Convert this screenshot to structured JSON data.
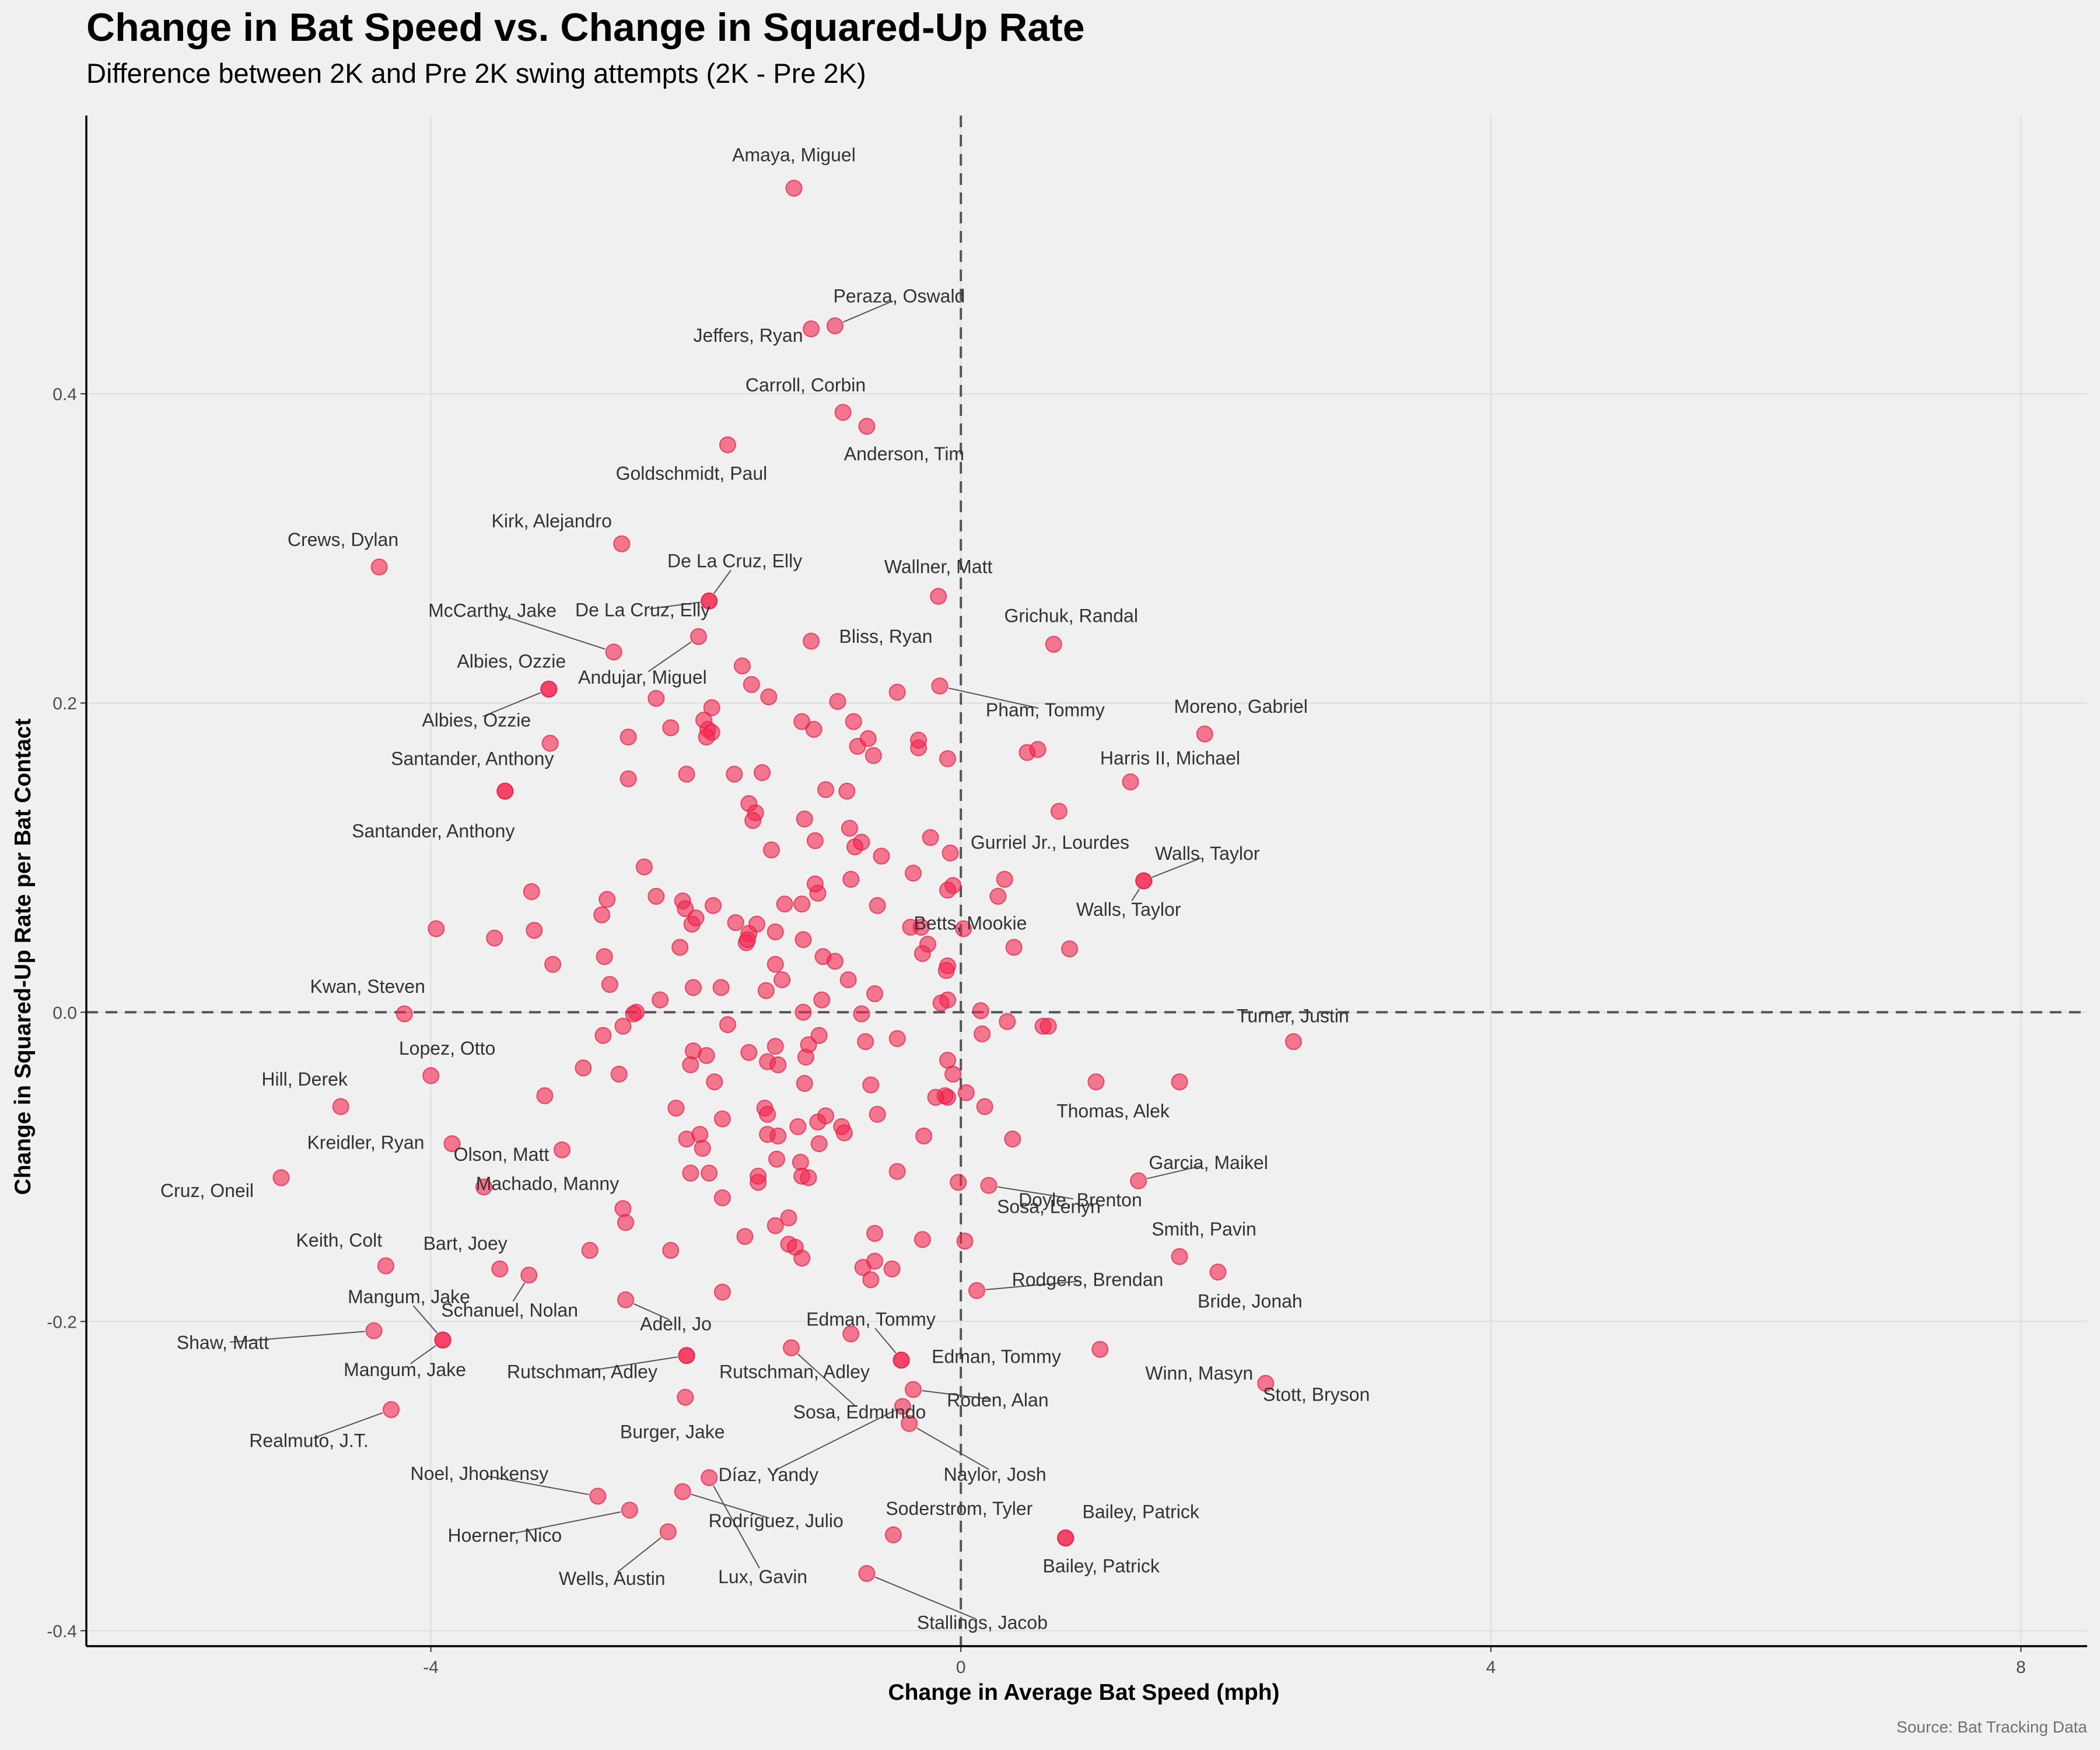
{
  "title": "Change in Bat Speed vs. Change in Squared-Up Rate",
  "subtitle": "Difference between 2K and Pre 2K swing attempts (2K - Pre 2K)",
  "caption": "Source: Bat Tracking Data",
  "colors": {
    "point": "#f5254f",
    "background": "#f0f0f0"
  },
  "chart_data": {
    "type": "scatter",
    "xlabel": "Change in Average Bat Speed (mph)",
    "ylabel": "Change in Squared-Up Rate per Bat Contact",
    "xlim": [
      -6.6,
      8.5
    ],
    "ylim": [
      -0.41,
      0.58
    ],
    "xticks": [
      -4,
      0,
      4,
      8
    ],
    "yticks": [
      -0.4,
      -0.2,
      0.0,
      0.2,
      0.4
    ],
    "xtick_labels": [
      "-4",
      "0",
      "4",
      "8"
    ],
    "ytick_labels": [
      "-0.4",
      "-0.2",
      "0.0",
      "0.2",
      "0.4"
    ],
    "reference_lines": {
      "x": 0,
      "y": 0
    },
    "grid": true,
    "labeled_points": [
      {
        "label": "Amaya, Miguel",
        "x": -1.26,
        "y": 0.533
      },
      {
        "label": "Peraza, Oswald",
        "x": -0.95,
        "y": 0.444
      },
      {
        "label": "Jeffers, Ryan",
        "x": -1.13,
        "y": 0.442
      },
      {
        "label": "Carroll, Corbin",
        "x": -0.89,
        "y": 0.388
      },
      {
        "label": "Anderson, Tim",
        "x": -0.71,
        "y": 0.379
      },
      {
        "label": "Goldschmidt, Paul",
        "x": -1.76,
        "y": 0.367
      },
      {
        "label": "Kirk, Alejandro",
        "x": -2.56,
        "y": 0.303
      },
      {
        "label": "Crews, Dylan",
        "x": -4.39,
        "y": 0.288
      },
      {
        "label": "Wallner, Matt",
        "x": -0.17,
        "y": 0.269
      },
      {
        "label": "De La Cruz, Elly",
        "x": -1.9,
        "y": 0.266
      },
      {
        "label": "De La Cruz, Elly",
        "x": -1.9,
        "y": 0.266
      },
      {
        "label": "McCarthy, Jake",
        "x": -2.62,
        "y": 0.233
      },
      {
        "label": "Andujar, Miguel",
        "x": -1.98,
        "y": 0.243
      },
      {
        "label": "Bliss, Ryan",
        "x": -1.13,
        "y": 0.24
      },
      {
        "label": "Grichuk, Randal",
        "x": 0.7,
        "y": 0.238
      },
      {
        "label": "Albies, Ozzie",
        "x": -3.11,
        "y": 0.209
      },
      {
        "label": "Albies, Ozzie",
        "x": -3.11,
        "y": 0.209
      },
      {
        "label": "Pham, Tommy",
        "x": -0.16,
        "y": 0.211
      },
      {
        "label": "Moreno, Gabriel",
        "x": 1.84,
        "y": 0.18
      },
      {
        "label": "Harris II, Michael",
        "x": 1.28,
        "y": 0.149
      },
      {
        "label": "Santander, Anthony",
        "x": -3.44,
        "y": 0.143
      },
      {
        "label": "Santander, Anthony",
        "x": -3.44,
        "y": 0.143
      },
      {
        "label": "Gurriel Jr., Lourdes",
        "x": -0.23,
        "y": 0.113
      },
      {
        "label": "Walls, Taylor",
        "x": 1.38,
        "y": 0.085
      },
      {
        "label": "Walls, Taylor",
        "x": 1.38,
        "y": 0.085
      },
      {
        "label": "Betts, Mookie",
        "x": 0.82,
        "y": 0.041
      },
      {
        "label": "Kwan, Steven",
        "x": -4.2,
        "y": -0.001
      },
      {
        "label": "Turner, Justin",
        "x": 2.51,
        "y": -0.019
      },
      {
        "label": "Lopez, Otto",
        "x": -4.0,
        "y": -0.041
      },
      {
        "label": "Hill, Derek",
        "x": -4.68,
        "y": -0.061
      },
      {
        "label": "Thomas, Alek",
        "x": 1.65,
        "y": -0.045
      },
      {
        "label": "Olson, Matt",
        "x": -3.01,
        "y": -0.089
      },
      {
        "label": "Kreidler, Ryan",
        "x": -3.84,
        "y": -0.085
      },
      {
        "label": "Machado, Manny",
        "x": -3.6,
        "y": -0.113
      },
      {
        "label": "Garcia, Maikel",
        "x": 1.34,
        "y": -0.109
      },
      {
        "label": "Cruz, Oneil",
        "x": -5.13,
        "y": -0.107
      },
      {
        "label": "Doyle, Brenton",
        "x": 0.21,
        "y": -0.112
      },
      {
        "label": "Smith, Pavin",
        "x": 1.65,
        "y": -0.158
      },
      {
        "label": "Sosa, Lenyn",
        "x": 0.03,
        "y": -0.148
      },
      {
        "label": "Keith, Colt",
        "x": -4.34,
        "y": -0.164
      },
      {
        "label": "Bart, Joey",
        "x": -3.48,
        "y": -0.166
      },
      {
        "label": "Bride, Jonah",
        "x": 1.94,
        "y": -0.168
      },
      {
        "label": "Rodgers, Brendan",
        "x": 0.12,
        "y": -0.18
      },
      {
        "label": "Schanuel, Nolan",
        "x": -3.26,
        "y": -0.17
      },
      {
        "label": "Adell, Jo",
        "x": -2.53,
        "y": -0.186
      },
      {
        "label": "Edman, Tommy",
        "x": -0.45,
        "y": -0.225
      },
      {
        "label": "Edman, Tommy",
        "x": -0.45,
        "y": -0.225
      },
      {
        "label": "Mangum, Jake",
        "x": -3.91,
        "y": -0.212
      },
      {
        "label": "Mangum, Jake",
        "x": -3.91,
        "y": -0.212
      },
      {
        "label": "Shaw, Matt",
        "x": -4.43,
        "y": -0.206
      },
      {
        "label": "Winn, Masyn",
        "x": 1.05,
        "y": -0.218
      },
      {
        "label": "Rutschman, Adley",
        "x": -2.07,
        "y": -0.222
      },
      {
        "label": "Rutschman, Adley",
        "x": -2.07,
        "y": -0.222
      },
      {
        "label": "Sosa, Edmundo",
        "x": -1.28,
        "y": -0.217
      },
      {
        "label": "Stott, Bryson",
        "x": 2.3,
        "y": -0.24
      },
      {
        "label": "Roden, Alan",
        "x": -0.36,
        "y": -0.244
      },
      {
        "label": "Burger, Jake",
        "x": -2.08,
        "y": -0.249
      },
      {
        "label": "Díaz, Yandy",
        "x": -0.44,
        "y": -0.255
      },
      {
        "label": "Naylor, Josh",
        "x": -0.39,
        "y": -0.266
      },
      {
        "label": "Realmuto, J.T.",
        "x": -4.3,
        "y": -0.257
      },
      {
        "label": "Noel, Jhonkensy",
        "x": -2.74,
        "y": -0.313
      },
      {
        "label": "Hoerner, Nico",
        "x": -2.5,
        "y": -0.322
      },
      {
        "label": "Rodríguez, Julio",
        "x": -2.1,
        "y": -0.31
      },
      {
        "label": "Lux, Gavin",
        "x": -1.9,
        "y": -0.301
      },
      {
        "label": "Wells, Austin",
        "x": -2.21,
        "y": -0.336
      },
      {
        "label": "Soderstrom, Tyler",
        "x": -0.51,
        "y": -0.338
      },
      {
        "label": "Bailey, Patrick",
        "x": 0.79,
        "y": -0.34
      },
      {
        "label": "Bailey, Patrick",
        "x": 0.79,
        "y": -0.34
      },
      {
        "label": "Stallings, Jacob",
        "x": -0.71,
        "y": -0.363
      }
    ],
    "other_points": [
      [
        -1.88,
        0.197
      ],
      [
        -1.91,
        0.183
      ],
      [
        -1.94,
        0.189
      ],
      [
        -1.71,
        0.154
      ],
      [
        -1.5,
        0.155
      ],
      [
        -1.65,
        0.224
      ],
      [
        -1.58,
        0.212
      ],
      [
        -1.45,
        0.204
      ],
      [
        -2.3,
        0.203
      ],
      [
        -2.19,
        0.184
      ],
      [
        -2.51,
        0.178
      ],
      [
        -3.1,
        0.174
      ],
      [
        -2.51,
        0.151
      ],
      [
        -2.07,
        0.154
      ],
      [
        -1.2,
        0.188
      ],
      [
        -1.11,
        0.183
      ],
      [
        -0.93,
        0.201
      ],
      [
        -0.81,
        0.188
      ],
      [
        -0.78,
        0.172
      ],
      [
        -0.7,
        0.177
      ],
      [
        -0.66,
        0.166
      ],
      [
        -0.48,
        0.207
      ],
      [
        -0.32,
        0.171
      ],
      [
        -0.32,
        0.176
      ],
      [
        -0.1,
        0.164
      ],
      [
        0.5,
        0.168
      ],
      [
        0.58,
        0.17
      ],
      [
        0.74,
        0.13
      ],
      [
        -0.86,
        0.143
      ],
      [
        -1.02,
        0.144
      ],
      [
        -1.18,
        0.125
      ],
      [
        -0.84,
        0.119
      ],
      [
        -0.8,
        0.107
      ],
      [
        -0.75,
        0.11
      ],
      [
        -1.1,
        0.111
      ],
      [
        -1.43,
        0.105
      ],
      [
        -1.55,
        0.129
      ],
      [
        -1.6,
        0.135
      ],
      [
        -1.57,
        0.124
      ],
      [
        -1.88,
        0.181
      ],
      [
        -1.92,
        0.178
      ],
      [
        -0.6,
        0.101
      ],
      [
        -0.36,
        0.09
      ],
      [
        -0.08,
        0.103
      ],
      [
        -0.06,
        0.082
      ],
      [
        -0.1,
        0.079
      ],
      [
        0.33,
        0.086
      ],
      [
        0.28,
        0.075
      ],
      [
        -2.39,
        0.094
      ],
      [
        -2.3,
        0.075
      ],
      [
        -2.1,
        0.072
      ],
      [
        -2.08,
        0.067
      ],
      [
        -2.03,
        0.057
      ],
      [
        -2.0,
        0.061
      ],
      [
        -1.87,
        0.069
      ],
      [
        -1.7,
        0.058
      ],
      [
        -1.62,
        0.045
      ],
      [
        -1.6,
        0.051
      ],
      [
        -1.54,
        0.057
      ],
      [
        -1.4,
        0.052
      ],
      [
        -1.33,
        0.07
      ],
      [
        -1.2,
        0.07
      ],
      [
        -1.08,
        0.077
      ],
      [
        -1.1,
        0.083
      ],
      [
        -0.83,
        0.086
      ],
      [
        -0.63,
        0.069
      ],
      [
        -0.38,
        0.055
      ],
      [
        -0.3,
        0.055
      ],
      [
        -0.25,
        0.044
      ],
      [
        -0.29,
        0.038
      ],
      [
        0.02,
        0.054
      ],
      [
        0.4,
        0.042
      ],
      [
        -3.24,
        0.078
      ],
      [
        -3.22,
        0.053
      ],
      [
        -3.52,
        0.048
      ],
      [
        -3.96,
        0.054
      ],
      [
        -3.08,
        0.031
      ],
      [
        -2.71,
        0.063
      ],
      [
        -2.67,
        0.073
      ],
      [
        -2.69,
        0.036
      ],
      [
        -2.65,
        0.018
      ],
      [
        -2.27,
        0.008
      ],
      [
        -2.12,
        0.042
      ],
      [
        -2.02,
        0.016
      ],
      [
        -1.81,
        0.016
      ],
      [
        -1.61,
        0.047
      ],
      [
        -1.4,
        0.031
      ],
      [
        -1.47,
        0.014
      ],
      [
        -1.35,
        0.021
      ],
      [
        -1.19,
        0.047
      ],
      [
        -1.04,
        0.036
      ],
      [
        -0.95,
        0.033
      ],
      [
        -0.85,
        0.021
      ],
      [
        -0.65,
        0.012
      ],
      [
        -1.05,
        0.008
      ],
      [
        -1.19,
        0.0
      ],
      [
        -0.75,
        -0.001
      ],
      [
        -0.1,
        0.008
      ],
      [
        -0.1,
        0.03
      ],
      [
        -0.11,
        0.027
      ],
      [
        -0.15,
        0.006
      ],
      [
        0.15,
        0.001
      ],
      [
        0.16,
        -0.014
      ],
      [
        0.35,
        -0.006
      ],
      [
        0.62,
        -0.009
      ],
      [
        0.66,
        -0.009
      ],
      [
        -2.45,
        0.0
      ],
      [
        -2.47,
        -0.001
      ],
      [
        -2.55,
        -0.009
      ],
      [
        -2.7,
        -0.015
      ],
      [
        -2.58,
        -0.04
      ],
      [
        -2.85,
        -0.036
      ],
      [
        -3.14,
        -0.054
      ],
      [
        -2.02,
        -0.025
      ],
      [
        -2.04,
        -0.034
      ],
      [
        -1.92,
        -0.028
      ],
      [
        -1.86,
        -0.045
      ],
      [
        -1.76,
        -0.008
      ],
      [
        -1.6,
        -0.026
      ],
      [
        -1.4,
        -0.022
      ],
      [
        -1.46,
        -0.032
      ],
      [
        -1.38,
        -0.034
      ],
      [
        -1.17,
        -0.029
      ],
      [
        -1.15,
        -0.021
      ],
      [
        -1.07,
        -0.015
      ],
      [
        -1.18,
        -0.046
      ],
      [
        -0.72,
        -0.019
      ],
      [
        -0.68,
        -0.047
      ],
      [
        -0.48,
        -0.017
      ],
      [
        -0.1,
        -0.031
      ],
      [
        -0.06,
        -0.04
      ],
      [
        -0.1,
        -0.055
      ],
      [
        -0.12,
        -0.054
      ],
      [
        -0.19,
        -0.055
      ],
      [
        0.04,
        -0.052
      ],
      [
        0.18,
        -0.061
      ],
      [
        1.02,
        -0.045
      ],
      [
        -2.15,
        -0.062
      ],
      [
        -2.07,
        -0.082
      ],
      [
        -1.97,
        -0.079
      ],
      [
        -1.95,
        -0.088
      ],
      [
        -1.8,
        -0.069
      ],
      [
        -1.48,
        -0.062
      ],
      [
        -1.46,
        -0.066
      ],
      [
        -1.46,
        -0.079
      ],
      [
        -1.38,
        -0.08
      ],
      [
        -1.23,
        -0.074
      ],
      [
        -1.02,
        -0.067
      ],
      [
        -1.08,
        -0.071
      ],
      [
        -0.9,
        -0.074
      ],
      [
        -0.88,
        -0.078
      ],
      [
        -0.63,
        -0.066
      ],
      [
        -0.28,
        -0.08
      ],
      [
        -1.07,
        -0.085
      ],
      [
        -1.39,
        -0.095
      ],
      [
        -1.21,
        -0.097
      ],
      [
        -1.53,
        -0.106
      ],
      [
        -1.53,
        -0.11
      ],
      [
        -1.2,
        -0.106
      ],
      [
        -1.15,
        -0.107
      ],
      [
        -2.04,
        -0.104
      ],
      [
        -1.9,
        -0.104
      ],
      [
        -1.8,
        -0.12
      ],
      [
        0.39,
        -0.082
      ],
      [
        -0.48,
        -0.103
      ],
      [
        -0.02,
        -0.11
      ],
      [
        -2.55,
        -0.127
      ],
      [
        -2.53,
        -0.136
      ],
      [
        -1.4,
        -0.138
      ],
      [
        -1.3,
        -0.133
      ],
      [
        -1.63,
        -0.145
      ],
      [
        -1.3,
        -0.15
      ],
      [
        -1.25,
        -0.152
      ],
      [
        -1.2,
        -0.159
      ],
      [
        -0.65,
        -0.143
      ],
      [
        -0.29,
        -0.147
      ],
      [
        -2.8,
        -0.154
      ],
      [
        -2.19,
        -0.154
      ],
      [
        -0.74,
        -0.165
      ],
      [
        -0.65,
        -0.161
      ],
      [
        -0.52,
        -0.166
      ],
      [
        -0.68,
        -0.173
      ],
      [
        -1.8,
        -0.181
      ],
      [
        -0.83,
        -0.208
      ]
    ]
  }
}
